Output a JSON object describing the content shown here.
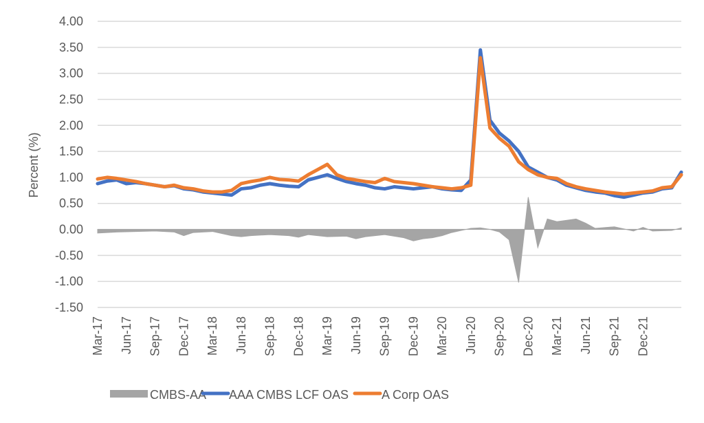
{
  "chart_data": {
    "type": "line",
    "title": "",
    "xlabel": "",
    "ylabel": "Percent (%)",
    "ylim": [
      -1.5,
      4.0
    ],
    "yticks": [
      "4.00",
      "3.50",
      "3.00",
      "2.50",
      "2.00",
      "1.50",
      "1.00",
      "0.50",
      "0.00",
      "-0.50",
      "-1.00",
      "-1.50"
    ],
    "ytick_values": [
      4.0,
      3.5,
      3.0,
      2.5,
      2.0,
      1.5,
      1.0,
      0.5,
      0.0,
      -0.5,
      -1.0,
      -1.5
    ],
    "xticks": [
      "Mar-17",
      "Jun-17",
      "Sep-17",
      "Dec-17",
      "Mar-18",
      "Jun-18",
      "Sep-18",
      "Dec-18",
      "Mar-19",
      "Jun-19",
      "Sep-19",
      "Dec-19",
      "Mar-20",
      "Jun-20",
      "Sep-20",
      "Dec-20",
      "Mar-21",
      "Jun-21",
      "Sep-21",
      "Dec-21"
    ],
    "x_range_months": [
      0,
      61
    ],
    "grid": true,
    "legend_position": "bottom",
    "colors": {
      "cmbs_aa": "#a5a5a5",
      "aaa_cmbs": "#4472c4",
      "a_corp": "#ed7d31",
      "grid": "#d9d9d9",
      "text": "#595959"
    },
    "series": [
      {
        "name": "CMBS-AA",
        "kind": "area",
        "x_months": [
          0,
          2,
          4,
          6,
          8,
          9,
          10,
          12,
          14,
          15,
          16,
          18,
          20,
          21,
          22,
          24,
          26,
          27,
          28,
          30,
          32,
          33,
          34,
          35,
          36,
          37,
          38,
          39,
          40,
          41,
          42,
          43,
          44,
          45,
          46,
          47,
          48,
          50,
          51,
          52,
          54,
          56,
          57,
          58,
          60,
          61
        ],
        "values": [
          -0.07,
          -0.05,
          -0.04,
          -0.03,
          -0.05,
          -0.12,
          -0.06,
          -0.04,
          -0.12,
          -0.14,
          -0.12,
          -0.1,
          -0.12,
          -0.15,
          -0.1,
          -0.14,
          -0.13,
          -0.18,
          -0.14,
          -0.1,
          -0.16,
          -0.22,
          -0.18,
          -0.16,
          -0.12,
          -0.06,
          -0.02,
          0.02,
          0.03,
          0.0,
          -0.05,
          -0.2,
          -1.02,
          0.62,
          -0.35,
          0.2,
          0.15,
          0.2,
          0.12,
          0.02,
          0.05,
          -0.03,
          0.04,
          -0.03,
          -0.02,
          0.03
        ]
      },
      {
        "name": "AAA CMBS LCF OAS",
        "kind": "line",
        "x_months": [
          0,
          1,
          2,
          3,
          4,
          5,
          6,
          7,
          8,
          9,
          10,
          11,
          12,
          13,
          14,
          15,
          16,
          17,
          18,
          19,
          20,
          21,
          22,
          23,
          24,
          25,
          26,
          27,
          28,
          29,
          30,
          31,
          32,
          33,
          34,
          35,
          36,
          37,
          38,
          39,
          40,
          41,
          42,
          43,
          44,
          45,
          46,
          47,
          48,
          49,
          50,
          51,
          52,
          53,
          54,
          55,
          56,
          57,
          58,
          59,
          60,
          61
        ],
        "values": [
          0.88,
          0.93,
          0.95,
          0.88,
          0.9,
          0.88,
          0.85,
          0.82,
          0.84,
          0.78,
          0.76,
          0.72,
          0.7,
          0.68,
          0.66,
          0.78,
          0.8,
          0.85,
          0.88,
          0.85,
          0.83,
          0.82,
          0.95,
          1.0,
          1.05,
          0.98,
          0.92,
          0.88,
          0.85,
          0.8,
          0.78,
          0.82,
          0.8,
          0.78,
          0.8,
          0.82,
          0.78,
          0.76,
          0.75,
          0.95,
          3.45,
          2.1,
          1.85,
          1.7,
          1.5,
          1.2,
          1.1,
          1.0,
          0.95,
          0.85,
          0.8,
          0.75,
          0.72,
          0.7,
          0.65,
          0.62,
          0.66,
          0.7,
          0.72,
          0.78,
          0.8,
          1.1
        ]
      },
      {
        "name": "A Corp OAS",
        "kind": "line",
        "x_months": [
          0,
          1,
          2,
          3,
          4,
          5,
          6,
          7,
          8,
          9,
          10,
          11,
          12,
          13,
          14,
          15,
          16,
          17,
          18,
          19,
          20,
          21,
          22,
          23,
          24,
          25,
          26,
          27,
          28,
          29,
          30,
          31,
          32,
          33,
          34,
          35,
          36,
          37,
          38,
          39,
          40,
          41,
          42,
          43,
          44,
          45,
          46,
          47,
          48,
          49,
          50,
          51,
          52,
          53,
          54,
          55,
          56,
          57,
          58,
          59,
          60,
          61
        ],
        "values": [
          0.97,
          1.0,
          0.98,
          0.95,
          0.92,
          0.88,
          0.85,
          0.82,
          0.85,
          0.8,
          0.78,
          0.74,
          0.72,
          0.72,
          0.75,
          0.88,
          0.92,
          0.95,
          1.0,
          0.96,
          0.95,
          0.93,
          1.05,
          1.15,
          1.25,
          1.05,
          0.98,
          0.95,
          0.92,
          0.9,
          0.98,
          0.92,
          0.9,
          0.88,
          0.85,
          0.82,
          0.8,
          0.78,
          0.8,
          0.85,
          3.3,
          1.95,
          1.75,
          1.6,
          1.3,
          1.15,
          1.05,
          1.0,
          0.98,
          0.88,
          0.82,
          0.78,
          0.75,
          0.72,
          0.7,
          0.68,
          0.7,
          0.72,
          0.74,
          0.8,
          0.82,
          1.05
        ]
      }
    ]
  },
  "legend": {
    "items": [
      {
        "label": "CMBS-AA"
      },
      {
        "label": "AAA CMBS LCF OAS"
      },
      {
        "label": "A Corp OAS"
      }
    ]
  }
}
